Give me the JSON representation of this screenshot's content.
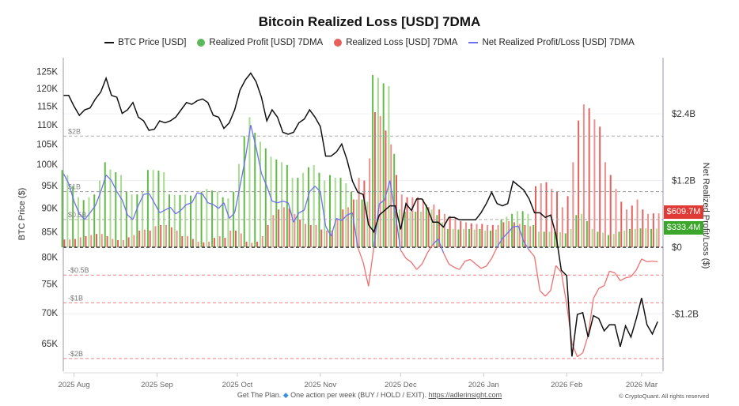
{
  "chart_data": {
    "type": "bar+line",
    "title": "Bitcoin Realized Loss [USD] 7DMA",
    "legend_position": "top",
    "legend": [
      {
        "name": "BTC Price [USD]",
        "color": "#111111",
        "mark": "line"
      },
      {
        "name": "Realized Profit [USD] 7DMA",
        "color": "#5cb85c",
        "mark": "dot"
      },
      {
        "name": "Realized Loss [USD] 7DMA",
        "color": "#e8605c",
        "mark": "dot"
      },
      {
        "name": "Net Realized Profit/Loss [USD] 7DMA",
        "color": "#6f6ff0",
        "mark": "line"
      }
    ],
    "ylabel_left": "BTC Price ($)",
    "ylabel_right": "Net Realized Profit/Loss ($)",
    "y_left_scale": "log",
    "y_left_range": [
      60800,
      128000
    ],
    "y_right_range": [
      -2.23,
      3.34
    ],
    "y_right_unit": "USD billions",
    "y_left_ticks": [
      {
        "label": "125K",
        "value": 125000
      },
      {
        "label": "120K",
        "value": 120000
      },
      {
        "label": "115K",
        "value": 115000
      },
      {
        "label": "110K",
        "value": 110000
      },
      {
        "label": "105K",
        "value": 105000
      },
      {
        "label": "100K",
        "value": 100000
      },
      {
        "label": "95K",
        "value": 95000
      },
      {
        "label": "90K",
        "value": 90000
      },
      {
        "label": "85K",
        "value": 85000
      },
      {
        "label": "80K",
        "value": 80000
      },
      {
        "label": "75K",
        "value": 75000
      },
      {
        "label": "70K",
        "value": 70000
      },
      {
        "label": "65K",
        "value": 65000
      }
    ],
    "y_right_ticks": [
      {
        "label": "$2.4B",
        "value": 2.4
      },
      {
        "label": "$1.2B",
        "value": 1.2
      },
      {
        "label": "$0",
        "value": 0
      },
      {
        "label": "-$1.2B",
        "value": -1.2
      }
    ],
    "x_ticks": [
      {
        "label": "2025 Aug",
        "date": "2025-08-01"
      },
      {
        "label": "2025 Sep",
        "date": "2025-09-01"
      },
      {
        "label": "2025 Oct",
        "date": "2025-10-01"
      },
      {
        "label": "2025 Nov",
        "date": "2025-11-01"
      },
      {
        "label": "2025 Dec",
        "date": "2025-12-01"
      },
      {
        "label": "2026 Jan",
        "date": "2026-01-01"
      },
      {
        "label": "2026 Feb",
        "date": "2026-02-01"
      },
      {
        "label": "2026 Mar",
        "date": "2026-03-01"
      }
    ],
    "x_range": [
      "2025-07-28",
      "2026-03-09"
    ],
    "reference_lines": [
      {
        "label": "$2B",
        "value": 2,
        "color": "#aaaaaa"
      },
      {
        "label": "$1B",
        "value": 1,
        "color": "#999999"
      },
      {
        "label": "$0.5B",
        "value": 0.5,
        "color": "#aaaaaa"
      },
      {
        "label": "",
        "value": 0,
        "color": "#222222"
      },
      {
        "label": "-$0.5B",
        "value": -0.5,
        "color": "#f08080"
      },
      {
        "label": "-$1B",
        "value": -1,
        "color": "#f08080"
      },
      {
        "label": "-$2B",
        "value": -2,
        "color": "#f08080"
      }
    ],
    "last_values": [
      {
        "label": "$609.7M",
        "series": "Realized Loss [USD] 7DMA",
        "color": "#e03a36"
      },
      {
        "label": "$333.4M",
        "series": "Realized Profit [USD] 7DMA",
        "color": "#3aa62a"
      }
    ],
    "x": [
      "2025-07-28",
      "2025-07-30",
      "2025-08-01",
      "2025-08-03",
      "2025-08-05",
      "2025-08-07",
      "2025-08-09",
      "2025-08-11",
      "2025-08-13",
      "2025-08-15",
      "2025-08-17",
      "2025-08-19",
      "2025-08-21",
      "2025-08-23",
      "2025-08-25",
      "2025-08-27",
      "2025-08-29",
      "2025-08-31",
      "2025-09-02",
      "2025-09-04",
      "2025-09-06",
      "2025-09-08",
      "2025-09-10",
      "2025-09-12",
      "2025-09-14",
      "2025-09-16",
      "2025-09-18",
      "2025-09-20",
      "2025-09-22",
      "2025-09-24",
      "2025-09-26",
      "2025-09-28",
      "2025-09-30",
      "2025-10-02",
      "2025-10-04",
      "2025-10-06",
      "2025-10-08",
      "2025-10-10",
      "2025-10-12",
      "2025-10-14",
      "2025-10-16",
      "2025-10-18",
      "2025-10-20",
      "2025-10-22",
      "2025-10-24",
      "2025-10-26",
      "2025-10-28",
      "2025-10-30",
      "2025-11-01",
      "2025-11-03",
      "2025-11-05",
      "2025-11-07",
      "2025-11-09",
      "2025-11-11",
      "2025-11-13",
      "2025-11-15",
      "2025-11-17",
      "2025-11-19",
      "2025-11-21",
      "2025-11-23",
      "2025-11-25",
      "2025-11-27",
      "2025-11-29",
      "2025-12-01",
      "2025-12-03",
      "2025-12-05",
      "2025-12-07",
      "2025-12-09",
      "2025-12-11",
      "2025-12-13",
      "2025-12-15",
      "2025-12-17",
      "2025-12-19",
      "2025-12-21",
      "2025-12-23",
      "2025-12-25",
      "2025-12-27",
      "2025-12-29",
      "2025-12-31",
      "2026-01-02",
      "2026-01-04",
      "2026-01-06",
      "2026-01-08",
      "2026-01-10",
      "2026-01-12",
      "2026-01-14",
      "2026-01-16",
      "2026-01-18",
      "2026-01-20",
      "2026-01-22",
      "2026-01-24",
      "2026-01-26",
      "2026-01-28",
      "2026-01-30",
      "2026-02-01",
      "2026-02-03",
      "2026-02-05",
      "2026-02-07",
      "2026-02-09",
      "2026-02-11",
      "2026-02-13",
      "2026-02-15",
      "2026-02-17",
      "2026-02-19",
      "2026-02-21",
      "2026-02-23",
      "2026-02-25",
      "2026-02-27",
      "2026-03-01",
      "2026-03-03",
      "2026-03-05",
      "2026-03-07"
    ],
    "series": [
      {
        "name": "BTC Price [USD]",
        "axis": "left",
        "unit": "thousand USD",
        "values": [
          118,
          118,
          115,
          112.5,
          114,
          114.5,
          117,
          119,
          123,
          118,
          117.5,
          113,
          114,
          116,
          112,
          111,
          108.5,
          108.8,
          111,
          110.5,
          111,
          112,
          114,
          116,
          115.5,
          116.5,
          117,
          116,
          112.5,
          112,
          109,
          110.5,
          114,
          119.5,
          122.5,
          124.5,
          122,
          117.5,
          111,
          114,
          112,
          108,
          107.5,
          108,
          110.5,
          111.5,
          114,
          112,
          109.5,
          102,
          102,
          103,
          105,
          101,
          96,
          93.5,
          93,
          86.5,
          85,
          88.5,
          89.5,
          90.5,
          90.5,
          85.5,
          91,
          89.5,
          92,
          92,
          90,
          87,
          87,
          86,
          88,
          88,
          87.5,
          87.5,
          87.5,
          87.5,
          89,
          91,
          93.5,
          91,
          90.5,
          91,
          96,
          95,
          94,
          92,
          89,
          89,
          88,
          88.5,
          84.5,
          77.5,
          76.5,
          63,
          69.7,
          70,
          66,
          69.5,
          69,
          67,
          68,
          68,
          64.5,
          67.8,
          66,
          69,
          72.5,
          68,
          66.5,
          68.5
        ]
      },
      {
        "name": "Realized Profit [USD] 7DMA",
        "axis": "right",
        "unit": "billion USD",
        "values": [
          1.39,
          1.3,
          1.1,
          0.9,
          0.85,
          0.9,
          0.95,
          1.2,
          1.53,
          1.4,
          1.35,
          1.3,
          1.0,
          0.95,
          0.95,
          1.0,
          1.39,
          1.39,
          1.38,
          1.35,
          0.95,
          0.94,
          0.94,
          0.95,
          0.93,
          0.95,
          1.0,
          1.05,
          1.02,
          1.0,
          0.9,
          0.88,
          1.0,
          1.5,
          2.0,
          2.34,
          2.06,
          1.9,
          1.78,
          1.63,
          1.58,
          1.53,
          1.48,
          1.25,
          1.25,
          1.34,
          1.44,
          1.48,
          1.34,
          1.2,
          1.3,
          1.25,
          1.25,
          1.15,
          1.0,
          0.86,
          0.86,
          0.82,
          3.1,
          3.05,
          2.95,
          2.9,
          1.68,
          0.68,
          0.64,
          0.64,
          0.64,
          0.64,
          0.77,
          0.68,
          0.58,
          0.45,
          0.33,
          0.33,
          0.32,
          0.33,
          0.33,
          0.32,
          0.33,
          0.3,
          0.3,
          0.32,
          0.5,
          0.55,
          0.6,
          0.65,
          0.65,
          0.6,
          0.4,
          0.28,
          0.28,
          0.28,
          0.28,
          0.27,
          0.25,
          0.33,
          0.58,
          0.6,
          0.47,
          0.33,
          0.28,
          0.26,
          0.22,
          0.24,
          0.28,
          0.3,
          0.33,
          0.33,
          0.34,
          0.34,
          0.33,
          0.333
        ]
      },
      {
        "name": "Realized Loss [USD] 7DMA",
        "axis": "right",
        "unit": "billion USD",
        "values": [
          0.14,
          0.14,
          0.15,
          0.18,
          0.2,
          0.22,
          0.24,
          0.24,
          0.2,
          0.15,
          0.13,
          0.13,
          0.18,
          0.22,
          0.3,
          0.32,
          0.3,
          0.38,
          0.4,
          0.4,
          0.36,
          0.3,
          0.2,
          0.2,
          0.15,
          0.1,
          0.09,
          0.1,
          0.17,
          0.2,
          0.17,
          0.3,
          0.3,
          0.25,
          0.1,
          0.08,
          0.1,
          0.2,
          0.4,
          0.58,
          0.68,
          0.72,
          0.7,
          0.6,
          0.5,
          0.42,
          0.4,
          0.4,
          0.32,
          0.3,
          0.3,
          0.5,
          0.68,
          0.72,
          0.86,
          1.25,
          1.2,
          1.6,
          2.43,
          2.36,
          2.1,
          1.85,
          1.3,
          0.95,
          0.9,
          0.9,
          0.9,
          0.86,
          0.72,
          0.77,
          0.68,
          0.6,
          0.56,
          0.54,
          0.47,
          0.45,
          0.43,
          0.42,
          0.42,
          0.4,
          0.4,
          0.4,
          0.45,
          0.47,
          0.45,
          0.42,
          0.4,
          0.38,
          1.1,
          1.15,
          1.17,
          1.05,
          1.0,
          0.72,
          0.92,
          1.53,
          2.28,
          2.57,
          2.5,
          2.3,
          2.17,
          1.53,
          1.3,
          1.05,
          0.82,
          0.68,
          0.75,
          0.86,
          0.68,
          0.6,
          0.61,
          0.61
        ]
      },
      {
        "name": "Net Realized Profit/Loss [USD] 7DMA",
        "axis": "right",
        "unit": "billion USD",
        "values": [
          1.33,
          1.15,
          0.83,
          0.6,
          0.5,
          0.62,
          0.75,
          1.0,
          1.3,
          1.2,
          1.0,
          0.85,
          0.58,
          0.5,
          0.75,
          0.95,
          0.97,
          0.8,
          0.62,
          0.67,
          0.72,
          0.6,
          0.67,
          0.77,
          0.8,
          0.98,
          0.96,
          0.8,
          0.77,
          0.7,
          0.8,
          0.52,
          0.62,
          1.1,
          1.6,
          2.2,
          1.8,
          1.33,
          1.1,
          0.83,
          0.8,
          0.83,
          0.8,
          0.45,
          0.62,
          0.67,
          1.0,
          1.1,
          1.0,
          0.38,
          0.2,
          0.52,
          0.48,
          0.58,
          0.62,
          0.0,
          -0.27,
          -0.7,
          0.0,
          0.78,
          0.85,
          1.2,
          0.6,
          -0.05,
          -0.2,
          -0.27,
          -0.4,
          -0.3,
          -0.1,
          0.05,
          0.15,
          -0.1,
          -0.3,
          -0.36,
          -0.4,
          -0.25,
          -0.22,
          -0.3,
          -0.38,
          -0.34,
          -0.2,
          0.0,
          0.16,
          0.26,
          0.37,
          0.38,
          0.1,
          -0.05,
          -0.17,
          -0.78,
          -0.88,
          -0.78,
          -0.33,
          -0.45,
          -1.02,
          -1.73,
          -1.97,
          -1.9,
          -1.59,
          -0.92,
          -0.74,
          -0.69,
          -0.43,
          -0.46,
          -0.6,
          -0.55,
          -0.53,
          -0.41,
          -0.21,
          -0.26,
          -0.25,
          -0.26
        ]
      }
    ],
    "colors": {
      "price": "#111111",
      "profit": "#62bb46",
      "profit_light": "#a8dc8f",
      "loss": "#e8605c",
      "net_positive": "#6f6ff0",
      "net_negative": "#f07070"
    }
  },
  "footer": {
    "text": "Get The Plan.",
    "icon": "diamond-icon",
    "text2": "One action per week (BUY / HOLD / EXIT).",
    "link": "https://adlerinsight.com",
    "copyright": "© CryptoQuant. All rights reserved"
  }
}
